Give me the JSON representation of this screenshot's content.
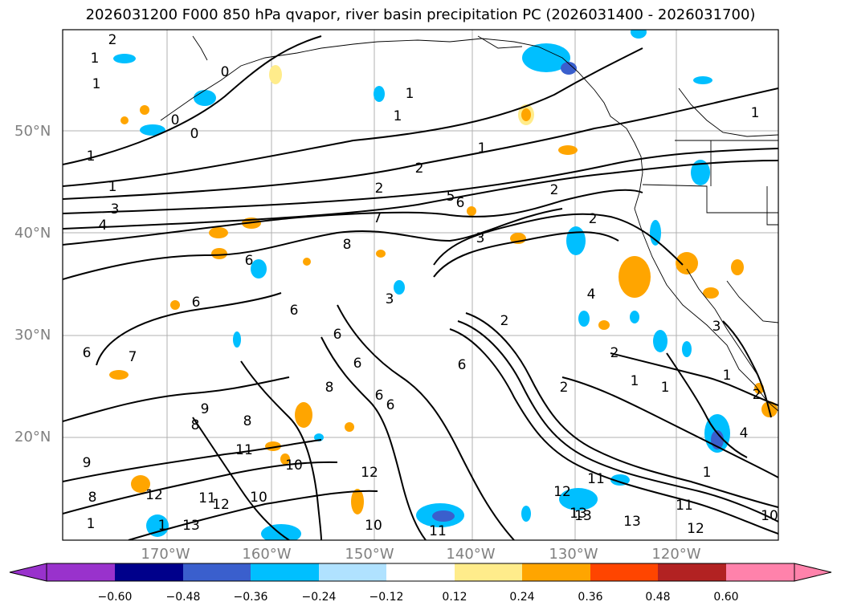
{
  "title": "2026031200 F000 850 hPa qvapor, river basin precipitation PC (2026031400 - 2026031700)",
  "lat_labels": [
    "50°N",
    "40°N",
    "30°N",
    "20°N"
  ],
  "lon_labels": [
    "170°W",
    "160°W",
    "150°W",
    "140°W",
    "130°W",
    "120°W"
  ],
  "colorbar": {
    "ticks": [
      "−0.60",
      "−0.48",
      "−0.36",
      "−0.24",
      "−0.12",
      "0.12",
      "0.24",
      "0.36",
      "0.48",
      "0.60"
    ],
    "colors": [
      "#9932cc",
      "#00008b",
      "#3a5fcd",
      "#00bfff",
      "#b0e2ff",
      "#ffffff",
      "#ffec8b",
      "#ffa500",
      "#ff4500",
      "#b22222",
      "#ff82ab"
    ]
  },
  "contour_labels": [
    "2",
    "1",
    "1",
    "0",
    "0",
    "0",
    "1",
    "1",
    "1",
    "1",
    "2",
    "2",
    "1",
    "3",
    "4",
    "5",
    "6",
    "7",
    "2",
    "3",
    "2",
    "8",
    "6",
    "6",
    "6",
    "6",
    "6",
    "3",
    "2",
    "2",
    "1",
    "1",
    "6",
    "6",
    "7",
    "8",
    "8",
    "6",
    "6",
    "8",
    "9",
    "9",
    "8",
    "11",
    "10",
    "10",
    "12",
    "11",
    "12",
    "12",
    "10",
    "11",
    "11",
    "12",
    "13",
    "13",
    "13",
    "13",
    "12",
    "11",
    "10",
    "1",
    "1",
    "2",
    "4",
    "3",
    "2",
    "4",
    "1",
    "1",
    "1"
  ],
  "precip_colors": {
    "neg_light": "#b0e2ff",
    "neg_mid": "#00bfff",
    "neg_strong": "#3a5fcd",
    "pos_light": "#ffec8b",
    "pos_mid": "#ffa500"
  }
}
